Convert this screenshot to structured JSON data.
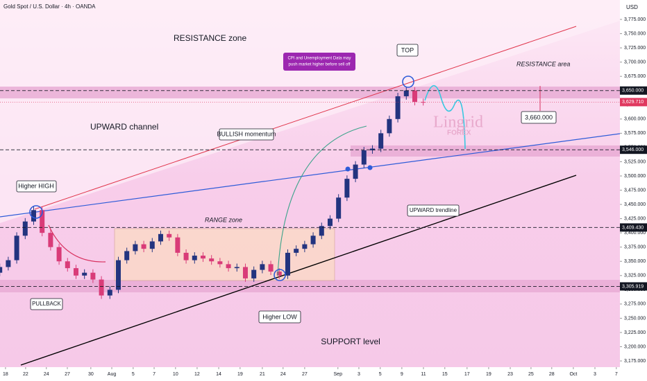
{
  "header": {
    "symbol": "Gold Spot / U.S. Dollar · 4h · OANDA",
    "currency": "USD"
  },
  "chart_data": {
    "type": "candlestick",
    "x": [
      -0.27,
      0.13,
      0.53,
      0.93,
      1.33,
      1.73,
      2.13,
      2.53,
      2.93,
      3.33,
      3.73,
      4.13,
      4.53,
      4.93,
      5.33,
      5.73,
      6.13,
      6.53,
      6.93,
      7.33,
      7.73,
      8.13,
      8.53,
      8.93,
      9.33,
      9.73,
      10.13,
      10.53,
      10.93,
      11.33,
      11.73,
      12.13,
      12.53,
      12.93,
      13.33,
      13.73,
      14.13,
      14.53,
      14.93,
      15.33,
      15.73,
      16.13,
      16.53,
      16.93,
      17.33,
      17.73,
      18.13,
      18.53,
      18.93,
      19.33,
      19.73
    ],
    "open": [
      3330,
      3340,
      3352,
      3395,
      3420,
      3440,
      3400,
      3375,
      3350,
      3338,
      3325,
      3330,
      3318,
      3290,
      3300,
      3352,
      3368,
      3380,
      3372,
      3385,
      3398,
      3392,
      3365,
      3352,
      3360,
      3355,
      3350,
      3345,
      3338,
      3340,
      3320,
      3335,
      3345,
      3332,
      3325,
      3365,
      3372,
      3380,
      3395,
      3412,
      3425,
      3462,
      3495,
      3520,
      3545,
      3548,
      3575,
      3600,
      3640,
      3650,
      3630
    ],
    "high": [
      3346,
      3358,
      3401,
      3426,
      3446,
      3446,
      3406,
      3381,
      3356,
      3344,
      3336,
      3336,
      3324,
      3306,
      3358,
      3374,
      3386,
      3386,
      3391,
      3404,
      3404,
      3398,
      3371,
      3366,
      3366,
      3361,
      3356,
      3351,
      3346,
      3346,
      3341,
      3351,
      3351,
      3338,
      3371,
      3378,
      3386,
      3401,
      3418,
      3431,
      3468,
      3501,
      3526,
      3551,
      3554,
      3581,
      3606,
      3646,
      3656,
      3656,
      3636
    ],
    "low": [
      3324,
      3334,
      3346,
      3389,
      3414,
      3394,
      3369,
      3344,
      3332,
      3319,
      3319,
      3312,
      3284,
      3284,
      3294,
      3346,
      3362,
      3366,
      3366,
      3379,
      3386,
      3359,
      3346,
      3346,
      3349,
      3344,
      3339,
      3332,
      3332,
      3314,
      3314,
      3329,
      3326,
      3319,
      3319,
      3359,
      3366,
      3374,
      3389,
      3406,
      3419,
      3456,
      3489,
      3514,
      3539,
      3542,
      3569,
      3594,
      3634,
      3624,
      3623.71
    ],
    "close": [
      3340,
      3352,
      3395,
      3420,
      3440,
      3400,
      3375,
      3350,
      3338,
      3325,
      3330,
      3318,
      3290,
      3300,
      3352,
      3368,
      3380,
      3372,
      3385,
      3398,
      3392,
      3365,
      3352,
      3360,
      3355,
      3350,
      3345,
      3338,
      3340,
      3320,
      3335,
      3345,
      3332,
      3325,
      3365,
      3372,
      3380,
      3395,
      3412,
      3425,
      3462,
      3495,
      3520,
      3545,
      3548,
      3575,
      3600,
      3640,
      3650,
      3630,
      3629.71
    ],
    "up_color": "#23347f",
    "down_color": "#d93b78",
    "xlim": [
      -0.26,
      29.02
    ],
    "xticks": [
      {
        "value": 0,
        "label": "18"
      },
      {
        "value": 0.95,
        "label": "22"
      },
      {
        "value": 1.93,
        "label": "24"
      },
      {
        "value": 2.92,
        "label": "27"
      },
      {
        "value": 4.03,
        "label": "30"
      },
      {
        "value": 5.02,
        "label": "Aug"
      },
      {
        "value": 6.03,
        "label": "5"
      },
      {
        "value": 7.02,
        "label": "7"
      },
      {
        "value": 8.03,
        "label": "10"
      },
      {
        "value": 9.05,
        "label": "12"
      },
      {
        "value": 10.07,
        "label": "14"
      },
      {
        "value": 11.08,
        "label": "19"
      },
      {
        "value": 12.13,
        "label": "21"
      },
      {
        "value": 13.11,
        "label": "24"
      },
      {
        "value": 14.13,
        "label": "27"
      },
      {
        "value": 15.7,
        "label": "Sep"
      },
      {
        "value": 16.69,
        "label": "3"
      },
      {
        "value": 17.7,
        "label": "5"
      },
      {
        "value": 18.72,
        "label": "9"
      },
      {
        "value": 19.74,
        "label": "11"
      },
      {
        "value": 20.75,
        "label": "15"
      },
      {
        "value": 21.8,
        "label": "17"
      },
      {
        "value": 22.82,
        "label": "19"
      },
      {
        "value": 23.84,
        "label": "23"
      },
      {
        "value": 24.82,
        "label": "25"
      },
      {
        "value": 25.8,
        "label": "28"
      },
      {
        "value": 26.82,
        "label": "Oct"
      },
      {
        "value": 27.84,
        "label": "3"
      },
      {
        "value": 28.85,
        "label": "7"
      }
    ],
    "ylim": [
      3164.1,
      3809.1
    ],
    "yticks": [
      {
        "value": 3175,
        "label": "3,175.000"
      },
      {
        "value": 3200,
        "label": "3,200.000"
      },
      {
        "value": 3225,
        "label": "3,225.000"
      },
      {
        "value": 3250,
        "label": "3,250.000"
      },
      {
        "value": 3275,
        "label": "3,275.000"
      },
      {
        "value": 3300,
        "label": "3,300.000"
      },
      {
        "value": 3325,
        "label": "3,325.000"
      },
      {
        "value": 3350,
        "label": "3,350.000"
      },
      {
        "value": 3375,
        "label": "3,375.000"
      },
      {
        "value": 3400,
        "label": "3,400.000"
      },
      {
        "value": 3425,
        "label": "3,425.000"
      },
      {
        "value": 3450,
        "label": "3,450.000"
      },
      {
        "value": 3475,
        "label": "3,475.000"
      },
      {
        "value": 3500,
        "label": "3,500.000"
      },
      {
        "value": 3525,
        "label": "3,525.000"
      },
      {
        "value": 3550,
        "label": "3,550.000"
      },
      {
        "value": 3575,
        "label": "3,575.000"
      },
      {
        "value": 3600,
        "label": "3,600.000"
      },
      {
        "value": 3625,
        "label": "3,625.000"
      },
      {
        "value": 3650,
        "label": "3,650.000"
      },
      {
        "value": 3675,
        "label": "3,675.000"
      },
      {
        "value": 3700,
        "label": "3,700.000"
      },
      {
        "value": 3725,
        "label": "3,725.000"
      },
      {
        "value": 3750,
        "label": "3,750.000"
      },
      {
        "value": 3775,
        "label": "3,775.000"
      }
    ],
    "price_levels": [
      {
        "value": 3650,
        "label": "3,650.000",
        "color": "#131722",
        "dashed": true
      },
      {
        "value": 3629.71,
        "label": "3,629.710",
        "color": "#e0385f",
        "dashed": false
      },
      {
        "value": 3546,
        "label": "3,546.000",
        "color": "#131722",
        "dashed": true
      },
      {
        "value": 3409.43,
        "label": "3,409.430",
        "color": "#131722",
        "dashed": true
      },
      {
        "value": 3305.919,
        "label": "3,305.919",
        "color": "#131722",
        "dashed": true
      }
    ],
    "annotations": [
      "RESISTANCE zone",
      "UPWARD channel",
      "Higher HIGH",
      "PULLBACK",
      "RANGE zone",
      "Higher LOW",
      "SUPPORT level",
      "BULLISH momentum",
      "CPI and Unemployment Data may",
      "push market higher before sell off",
      "TOP",
      "RESISTANCE area",
      "3,660.000",
      "UPWARD trendline",
      "Lingrid",
      "FOREX"
    ]
  }
}
